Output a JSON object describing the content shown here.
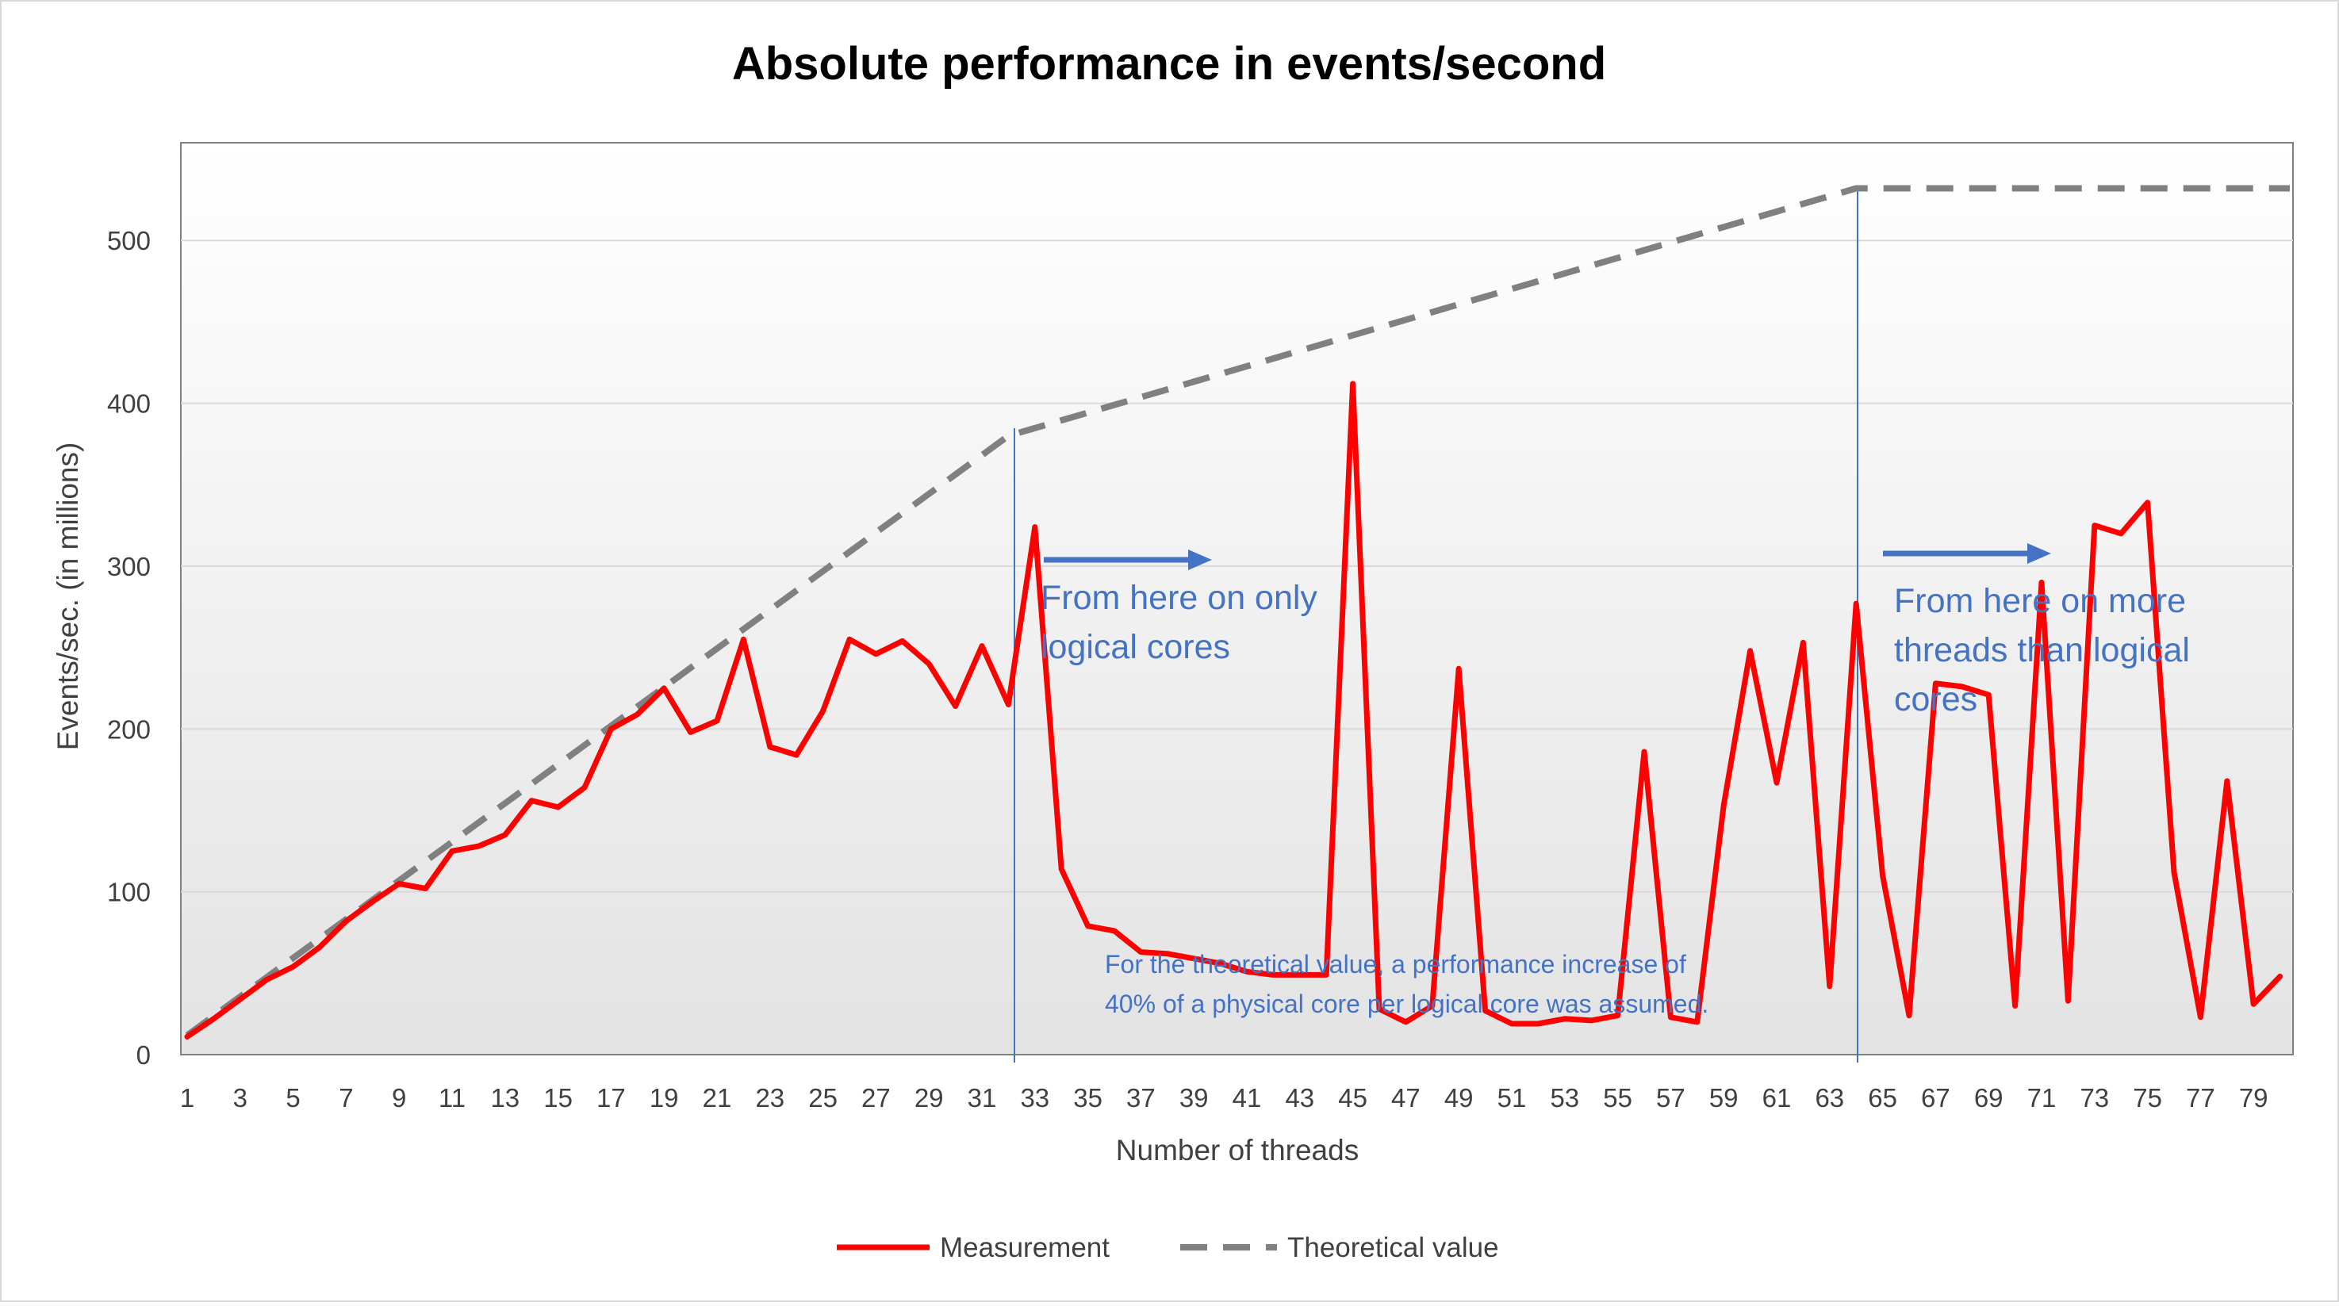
{
  "chart_data": {
    "type": "line",
    "title": "Absolute performance in events/second",
    "xlabel": "Number of threads",
    "ylabel": "Events/sec. (in millions)",
    "ylim": [
      0,
      560
    ],
    "xlim": [
      1,
      80
    ],
    "y_ticks": [
      "0",
      "100",
      "200",
      "300",
      "400",
      "500"
    ],
    "x_ticks": [
      "1",
      "3",
      "5",
      "7",
      "9",
      "11",
      "13",
      "15",
      "17",
      "19",
      "21",
      "23",
      "25",
      "27",
      "29",
      "31",
      "33",
      "35",
      "37",
      "39",
      "41",
      "43",
      "45",
      "47",
      "49",
      "51",
      "53",
      "55",
      "57",
      "59",
      "61",
      "63",
      "65",
      "67",
      "69",
      "71",
      "73",
      "75",
      "77",
      "79"
    ],
    "grid": true,
    "legend_position": "bottom",
    "x": [
      1,
      2,
      3,
      4,
      5,
      6,
      7,
      8,
      9,
      10,
      11,
      12,
      13,
      14,
      15,
      16,
      17,
      18,
      19,
      20,
      21,
      22,
      23,
      24,
      25,
      26,
      27,
      28,
      29,
      30,
      31,
      32,
      33,
      34,
      35,
      36,
      37,
      38,
      39,
      40,
      41,
      42,
      43,
      44,
      45,
      46,
      47,
      48,
      49,
      50,
      51,
      52,
      53,
      54,
      55,
      56,
      57,
      58,
      59,
      60,
      61,
      62,
      63,
      64,
      65,
      66,
      67,
      68,
      69,
      70,
      71,
      72,
      73,
      74,
      75,
      76,
      77,
      78,
      79,
      80
    ],
    "series": [
      {
        "name": "Measurement",
        "color": "#ff0000",
        "style": "solid",
        "values": [
          11,
          22,
          34,
          46,
          54,
          66,
          82,
          94,
          105,
          102,
          125,
          128,
          135,
          156,
          152,
          164,
          200,
          209,
          225,
          198,
          205,
          255,
          189,
          184,
          211,
          255,
          246,
          254,
          240,
          214,
          251,
          215,
          324,
          114,
          79,
          76,
          63,
          62,
          59,
          56,
          51,
          49,
          49,
          49,
          412,
          28,
          20,
          30,
          237,
          27,
          19,
          19,
          22,
          21,
          24,
          186,
          23,
          20,
          153,
          248,
          167,
          253,
          42,
          277,
          110,
          24,
          228,
          226,
          221,
          30,
          290,
          33,
          325,
          320,
          339,
          112,
          23,
          168,
          31,
          48
        ]
      },
      {
        "name": "Theoretical value",
        "color": "#808080",
        "style": "dashed",
        "values": [
          11.875,
          23.75,
          35.625,
          47.5,
          59.375,
          71.25,
          83.125,
          95,
          106.875,
          118.75,
          130.625,
          142.5,
          154.375,
          166.25,
          178.125,
          190,
          201.875,
          213.75,
          225.625,
          237.5,
          249.375,
          261.25,
          273.125,
          285,
          296.875,
          308.75,
          320.625,
          332.5,
          344.375,
          356.25,
          368.125,
          380,
          384.75,
          389.5,
          394.25,
          399,
          403.75,
          408.5,
          413.25,
          418,
          422.75,
          427.5,
          432.25,
          437,
          441.75,
          446.5,
          451.25,
          456,
          460.75,
          465.5,
          470.25,
          475,
          479.75,
          484.5,
          489.25,
          494,
          498.75,
          503.5,
          508.25,
          513,
          517.75,
          522.5,
          527.25,
          532,
          532,
          532,
          532,
          532,
          532,
          532,
          532,
          532,
          532,
          532,
          532,
          532,
          532,
          532,
          532,
          532
        ]
      }
    ],
    "markers": [
      32,
      64
    ],
    "annotations": [
      {
        "lines": [
          "From here on only",
          "logical cores"
        ],
        "at_x": 33
      },
      {
        "lines": [
          "From here on more",
          "threads than logical",
          "cores"
        ],
        "at_x": 65
      },
      {
        "lines": [
          "For the theoretical value, a performance increase of",
          "40% of a physical core per logical core was assumed."
        ],
        "at_x": 37
      }
    ],
    "colors": {
      "arrow": "#4472c4",
      "marker_line": "#4472c4",
      "grid": "#d9d9d9",
      "plot_border": "#808080"
    }
  }
}
